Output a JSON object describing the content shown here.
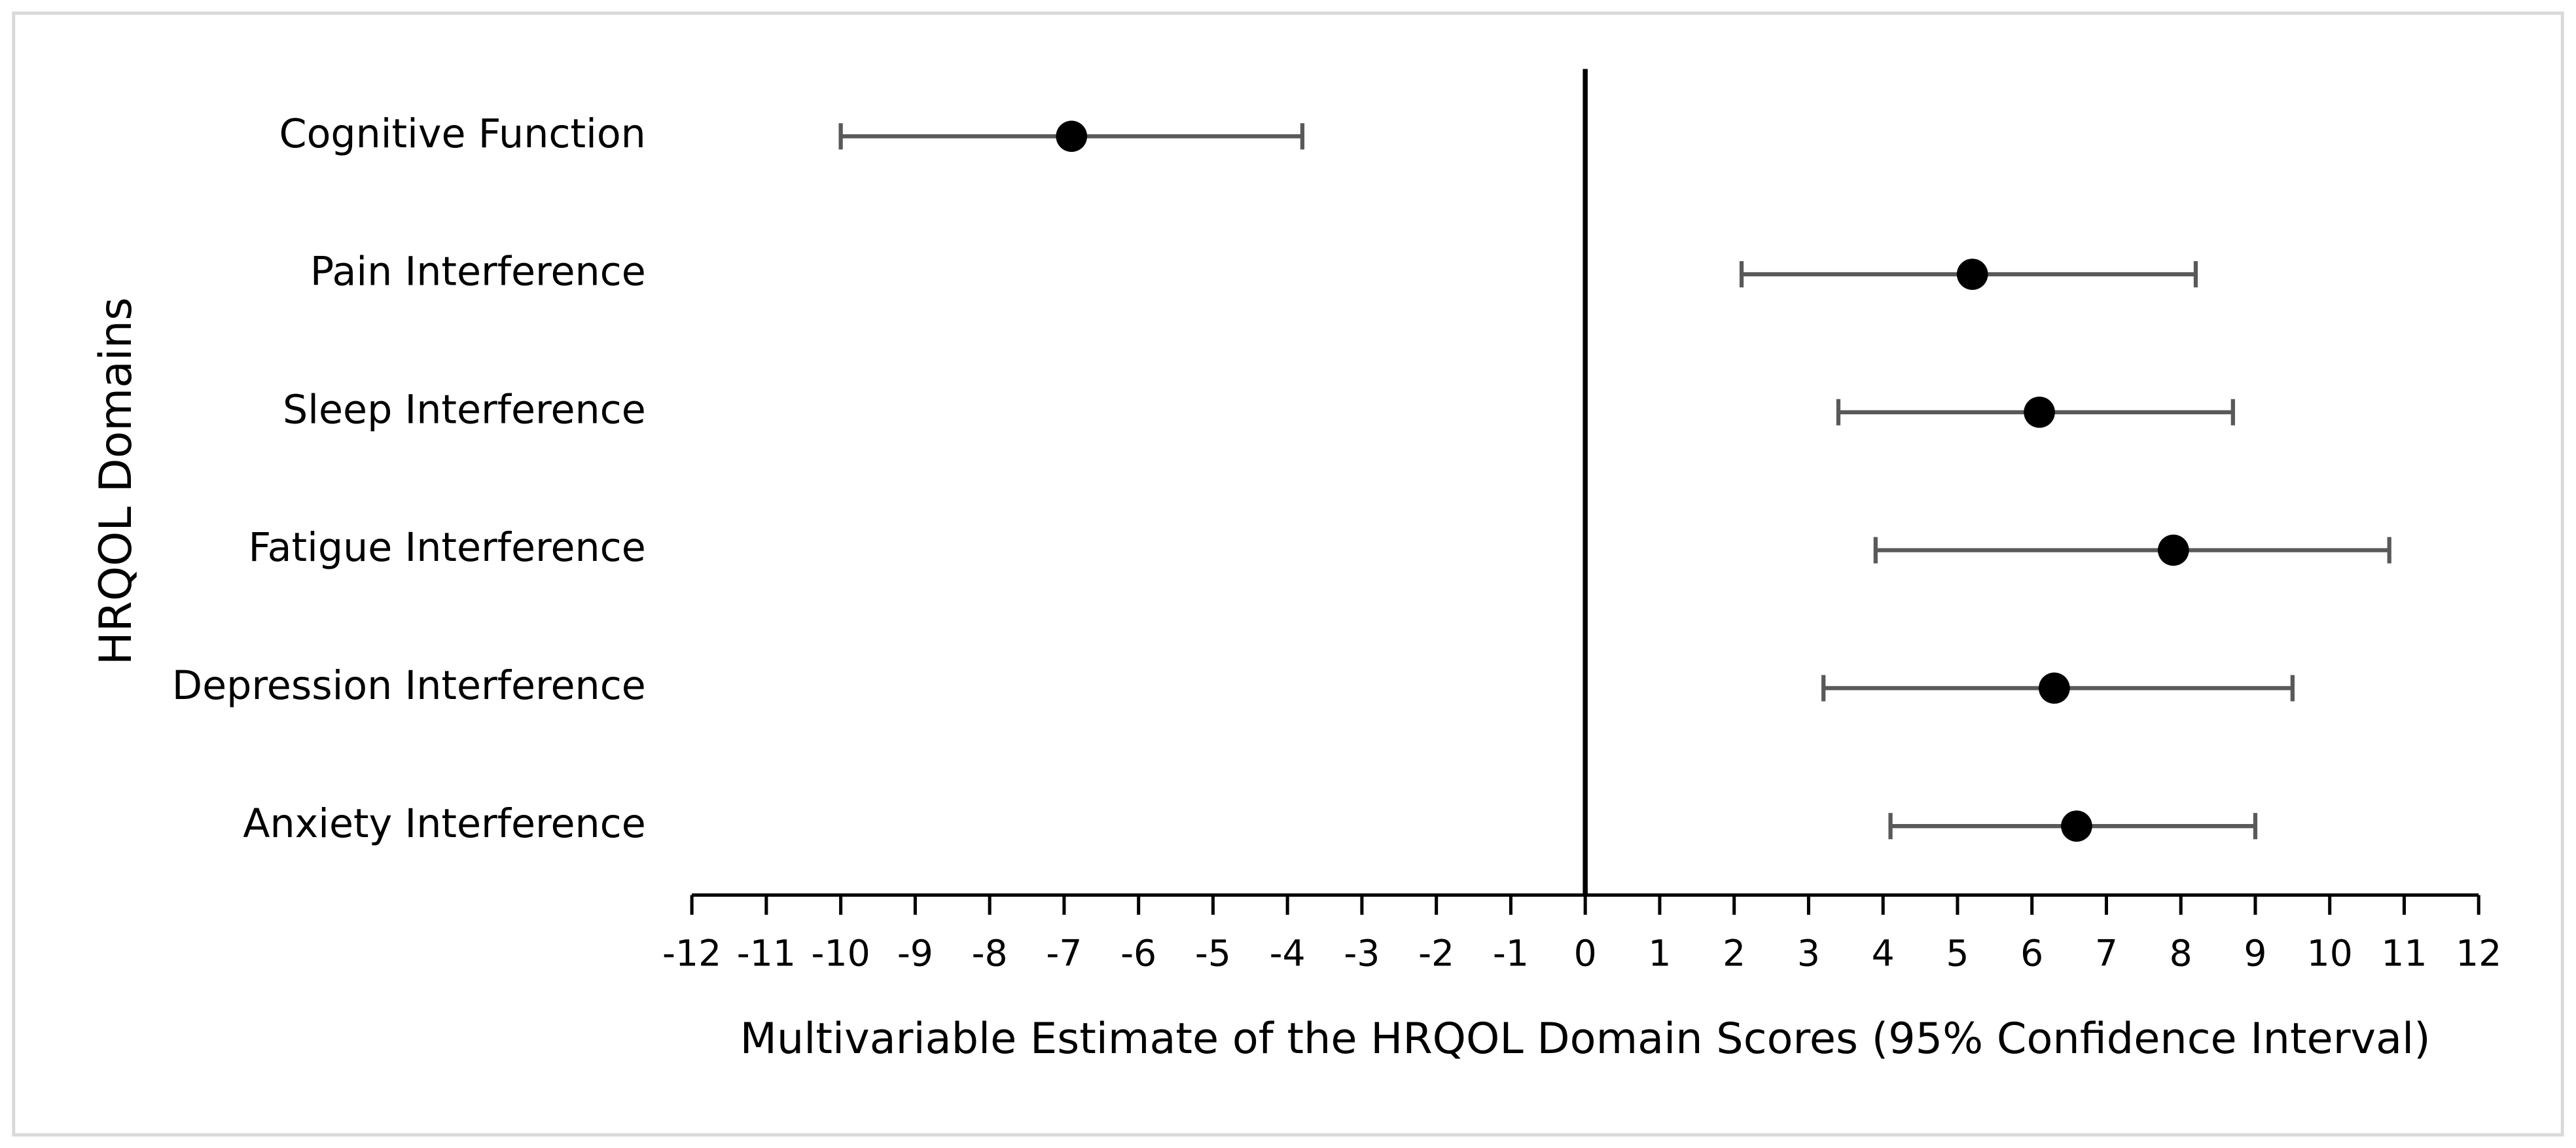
{
  "chart_data": {
    "type": "forest",
    "y_label": "HRQOL Domains",
    "x_label": "Multivariable Estimate of the HRQOL Domain Scores (95% Confidence Interval)",
    "categories": [
      "Cognitive Function",
      "Pain Interference",
      "Sleep Interference",
      "Fatigue Interference",
      "Depression Interference",
      "Anxiety Interference"
    ],
    "values": [
      -6.9,
      5.2,
      6.1,
      7.9,
      6.3,
      6.6
    ],
    "lower": [
      -10.0,
      2.1,
      3.4,
      3.9,
      3.2,
      4.1
    ],
    "upper": [
      -3.8,
      8.2,
      8.7,
      10.8,
      9.5,
      9.0
    ],
    "color": "#000000",
    "error_color": "#595959",
    "xlim": [
      -12,
      12
    ],
    "xticks": [
      -12,
      -11,
      -10,
      -9,
      -8,
      -7,
      -6,
      -5,
      -4,
      -3,
      -2,
      -1,
      0,
      1,
      2,
      3,
      4,
      5,
      6,
      7,
      8,
      9,
      10,
      11,
      12
    ]
  }
}
